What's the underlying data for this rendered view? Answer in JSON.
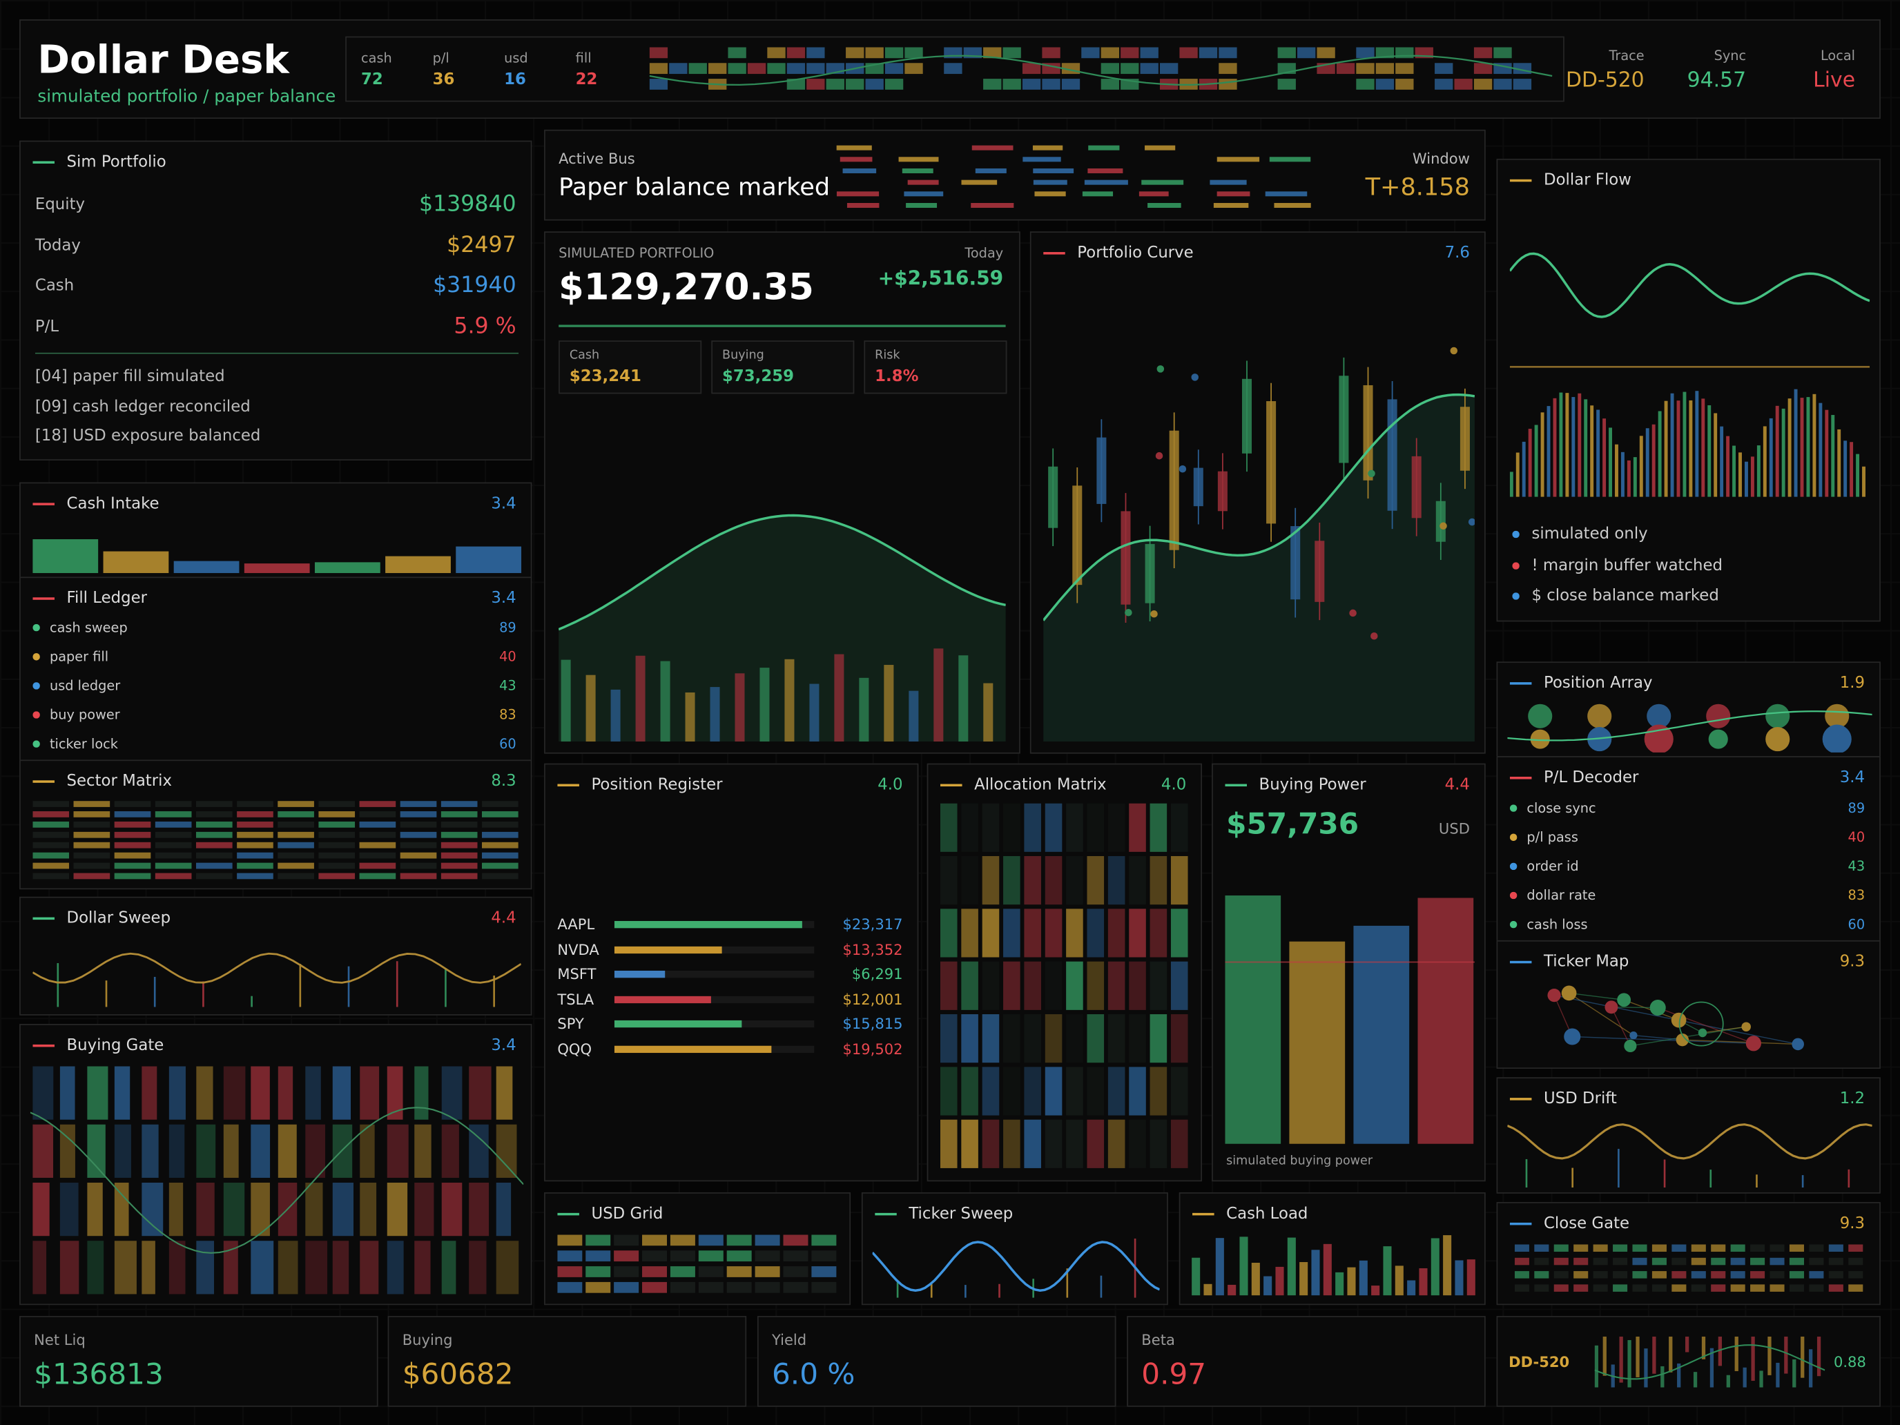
{
  "header": {
    "title": "Dollar Desk",
    "subtitle": "simulated portfolio / paper balance",
    "stats": [
      {
        "label": "cash",
        "value": "72"
      },
      {
        "label": "p/l",
        "value": "36"
      },
      {
        "label": "usd",
        "value": "16"
      },
      {
        "label": "fill",
        "value": "22"
      }
    ],
    "meta": [
      {
        "label": "Trace",
        "value": "DD-520"
      },
      {
        "label": "Sync",
        "value": "94.57"
      },
      {
        "label": "Local",
        "value": "Live"
      }
    ]
  },
  "sim_portfolio": {
    "title": "Sim Portfolio",
    "rows": [
      {
        "label": "Equity",
        "value": "$139840"
      },
      {
        "label": "Today",
        "value": "$2497"
      },
      {
        "label": "Cash",
        "value": "$31940"
      },
      {
        "label": "P/L",
        "value": "5.9 %"
      }
    ],
    "log": [
      "[04] paper fill simulated",
      "[09] cash ledger reconciled",
      "[18] USD exposure balanced"
    ]
  },
  "active_bus": {
    "label": "Active Bus",
    "title": "Paper balance marked",
    "window_label": "Window",
    "window": "T+8.158"
  },
  "simulated": {
    "label": "SIMULATED PORTFOLIO",
    "value": "$129,270.35",
    "today_label": "Today",
    "today": "+$2,516.59",
    "tiles": [
      {
        "label": "Cash",
        "value": "$23,241"
      },
      {
        "label": "Buying",
        "value": "$73,259"
      },
      {
        "label": "Risk",
        "value": "1.8%"
      }
    ]
  },
  "portfolio_curve": {
    "title": "Portfolio Curve",
    "value": "7.6"
  },
  "dollar_flow": {
    "title": "Dollar Flow",
    "legend": [
      "simulated only",
      "! margin buffer watched",
      "$ close balance marked"
    ]
  },
  "cash_intake": {
    "title": "Cash Intake",
    "value": "3.4"
  },
  "fill_ledger": {
    "title": "Fill Ledger",
    "value": "3.4",
    "items": [
      {
        "name": "cash sweep",
        "value": "89"
      },
      {
        "name": "paper fill",
        "value": "40"
      },
      {
        "name": "usd ledger",
        "value": "43"
      },
      {
        "name": "buy power",
        "value": "83"
      },
      {
        "name": "ticker lock",
        "value": "60"
      }
    ]
  },
  "sector_matrix": {
    "title": "Sector Matrix",
    "value": "8.3"
  },
  "dollar_sweep": {
    "title": "Dollar Sweep",
    "value": "4.4"
  },
  "buying_gate": {
    "title": "Buying Gate",
    "value": "3.4"
  },
  "position_register": {
    "title": "Position Register",
    "value": "4.0",
    "rows": [
      {
        "ticker": "AAPL",
        "value": "$23,317"
      },
      {
        "ticker": "NVDA",
        "value": "$13,352"
      },
      {
        "ticker": "MSFT",
        "value": "$6,291"
      },
      {
        "ticker": "TSLA",
        "value": "$12,001"
      },
      {
        "ticker": "SPY",
        "value": "$15,815"
      },
      {
        "ticker": "QQQ",
        "value": "$19,502"
      }
    ]
  },
  "allocation_matrix": {
    "title": "Allocation Matrix",
    "value": "4.0"
  },
  "buying_power": {
    "title": "Buying Power",
    "value": "4.4",
    "amount": "$57,736",
    "unit": "USD",
    "note": "simulated buying power"
  },
  "position_array": {
    "title": "Position Array",
    "value": "1.9"
  },
  "pl_decoder": {
    "title": "P/L Decoder",
    "value": "3.4",
    "items": [
      {
        "name": "close sync",
        "value": "89"
      },
      {
        "name": "p/l pass",
        "value": "40"
      },
      {
        "name": "order id",
        "value": "43"
      },
      {
        "name": "dollar rate",
        "value": "83"
      },
      {
        "name": "cash loss",
        "value": "60"
      }
    ]
  },
  "ticker_map": {
    "title": "Ticker Map",
    "value": "9.3"
  },
  "usd_drift": {
    "title": "USD Drift",
    "value": "1.2"
  },
  "close_gate": {
    "title": "Close Gate",
    "value": "9.3"
  },
  "usd_grid": {
    "title": "USD Grid"
  },
  "ticker_sweep": {
    "title": "Ticker Sweep"
  },
  "cash_load": {
    "title": "Cash Load"
  },
  "footer": {
    "kpis": [
      {
        "label": "Net Liq",
        "value": "$136813"
      },
      {
        "label": "Buying",
        "value": "$60682"
      },
      {
        "label": "Yield",
        "value": "6.0 %"
      },
      {
        "label": "Beta",
        "value": "0.97"
      }
    ],
    "trace": "DD-520",
    "trace_value": "0.88"
  }
}
